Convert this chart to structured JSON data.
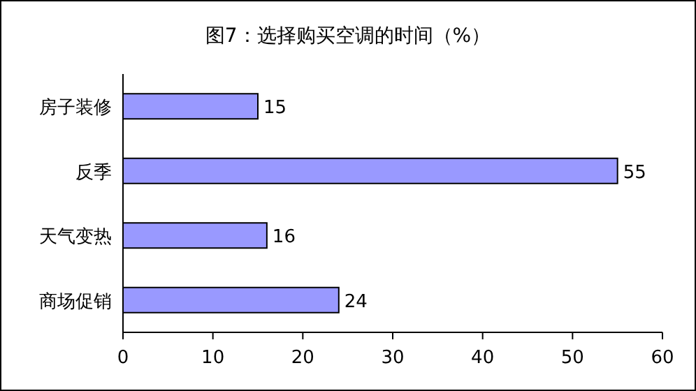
{
  "chart_data": {
    "type": "bar",
    "orientation": "horizontal",
    "title": "图7：选择购买空调的时间（%）",
    "categories": [
      "房子装修",
      "反季",
      "天气变热",
      "商场促销"
    ],
    "values": [
      15,
      55,
      16,
      24
    ],
    "color": "#9999ff",
    "xlim": [
      0,
      60
    ],
    "xticks": [
      0,
      10,
      20,
      30,
      40,
      50,
      60
    ],
    "data_labels": true,
    "grid": false
  }
}
